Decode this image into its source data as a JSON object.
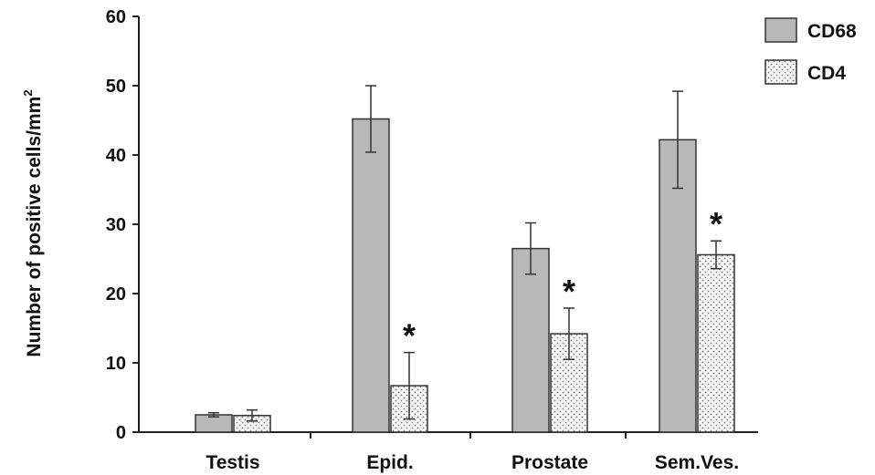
{
  "chart_data": {
    "type": "bar",
    "categories": [
      "Testis",
      "Epid.",
      "Prostate",
      "Sem.Ves."
    ],
    "series": [
      {
        "name": "CD68",
        "values": [
          2.5,
          45.2,
          26.5,
          42.2
        ],
        "errors": [
          0.3,
          4.8,
          3.7,
          7.0
        ],
        "color": "#b8b8b8",
        "pattern": "solid"
      },
      {
        "name": "CD4",
        "values": [
          2.4,
          6.7,
          14.2,
          25.6
        ],
        "errors": [
          0.8,
          4.8,
          3.7,
          2.0
        ],
        "color": "#f4f4f4",
        "pattern": "dotted"
      }
    ],
    "significance": [
      "",
      "*",
      "*",
      "*"
    ],
    "ylabel": "Number of positive cells/mm",
    "ylabel_superscript": "2",
    "ylim": [
      0,
      60
    ],
    "yticks": [
      "0",
      "10",
      "20",
      "30",
      "40",
      "50",
      "60"
    ],
    "grid": false,
    "legend_position": "top-right"
  }
}
